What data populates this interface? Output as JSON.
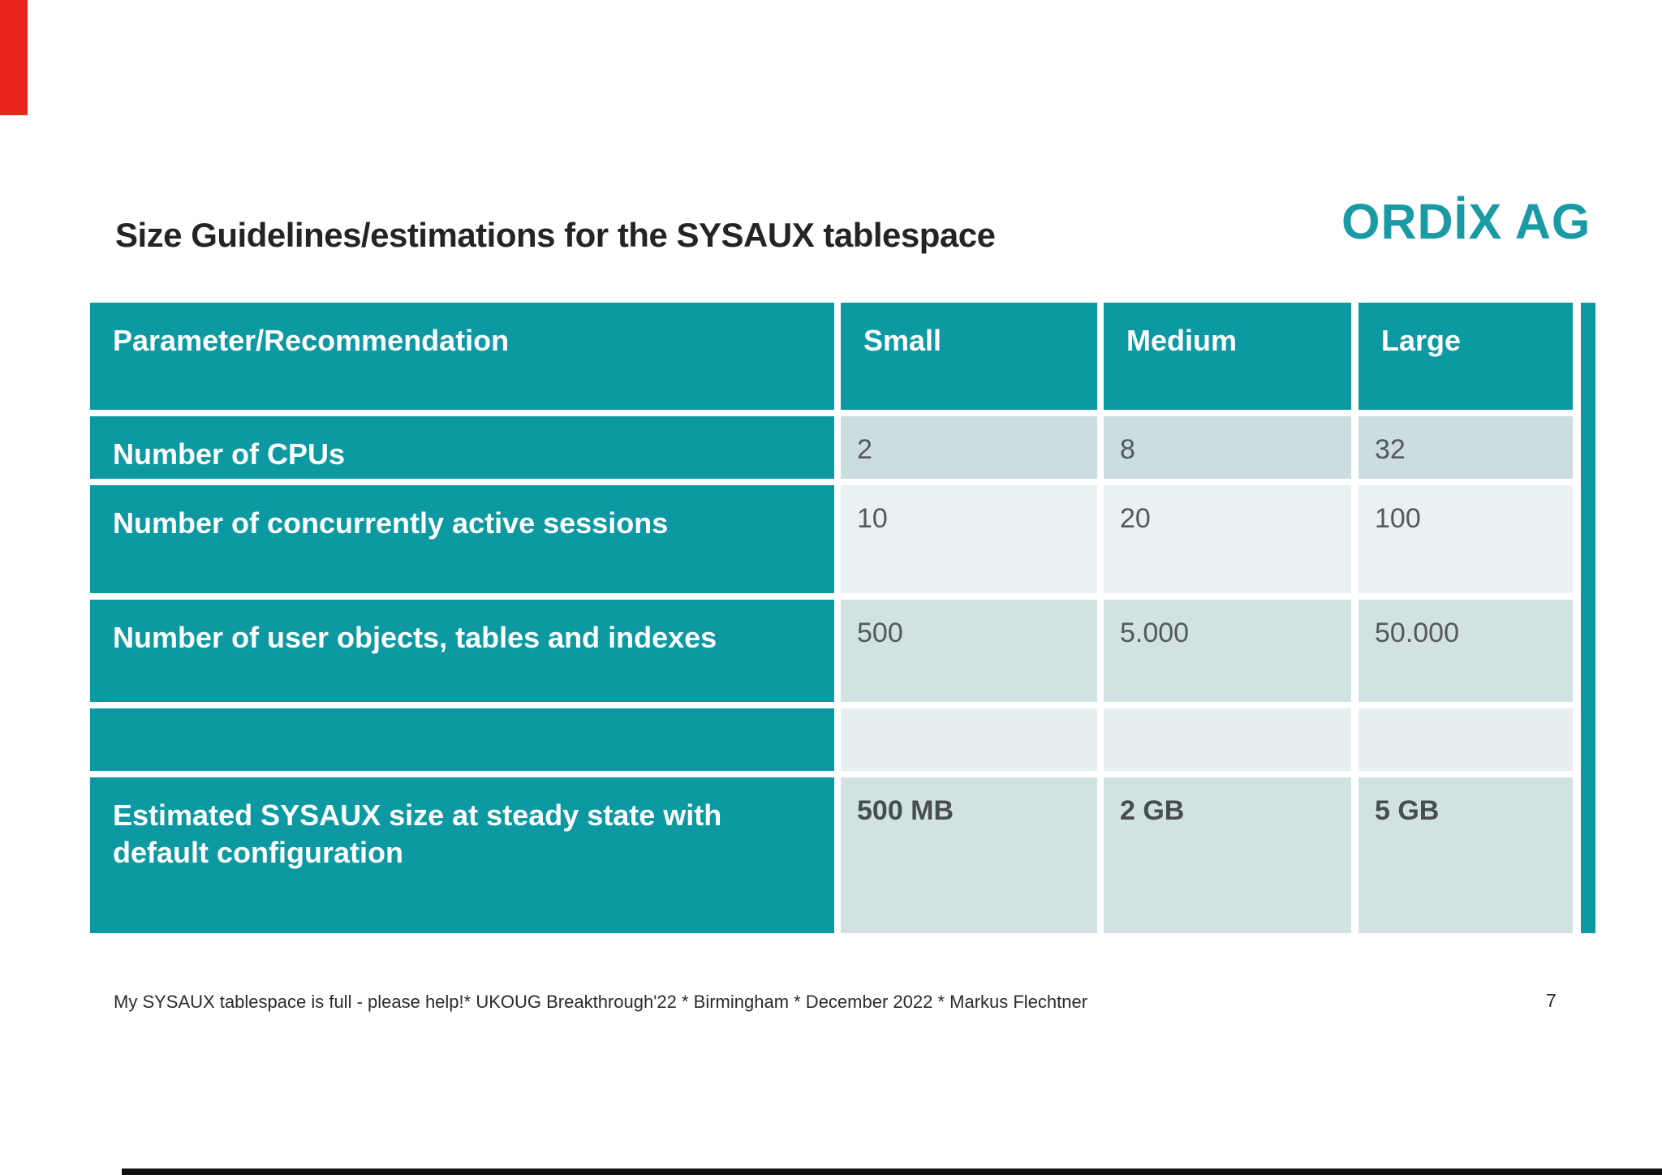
{
  "slide": {
    "title": "Size Guidelines/estimations for the SYSAUX tablespace",
    "logo_text": "ORDİX AG",
    "footer": "My SYSAUX tablespace is full - please help!* UKOUG Breakthrough'22 * Birmingham * December 2022 * Markus Flechtner",
    "page_number": "7"
  },
  "colors": {
    "teal": "#0d99a1",
    "logo_teal": "#1a9aa4",
    "red_bar": "#e8251c",
    "bottom_bar": "#111111",
    "row_bg_a": "#ccdde0",
    "row_bg_b": "#e9f1f2",
    "row_bg_c": "#d2e1e2",
    "row_bg_d": "#e7eff1"
  },
  "table": {
    "columns": [
      "Parameter/Recommendation",
      "Small",
      "Medium",
      "Large"
    ],
    "rows": [
      {
        "label": "Number of CPUs",
        "values": [
          "2",
          "8",
          "32"
        ]
      },
      {
        "label": "Number of concurrently active sessions",
        "values": [
          "10",
          "20",
          "100"
        ]
      },
      {
        "label": "Number of user objects, tables and indexes",
        "values": [
          "500",
          "5.000",
          "50.000"
        ]
      },
      {
        "label": "",
        "values": [
          "",
          "",
          ""
        ]
      },
      {
        "label": "Estimated SYSAUX size at steady state with default configuration",
        "values": [
          "500 MB",
          "2 GB",
          "5 GB"
        ]
      }
    ]
  }
}
